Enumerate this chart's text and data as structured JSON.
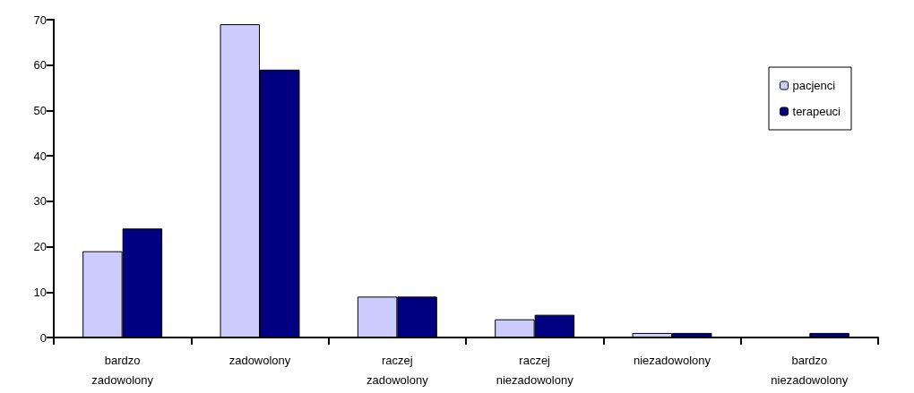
{
  "chart_data": {
    "type": "bar",
    "categories": [
      "bardzo\nzadowolony",
      "zadowolony",
      "raczej\nzadowolony",
      "raczej\nniezadowolony",
      "niezadowolony",
      "bardzo\nniezadowolony"
    ],
    "series": [
      {
        "name": "pacjenci",
        "color": "#ccccff",
        "values": [
          19,
          69,
          9,
          4,
          1,
          null
        ]
      },
      {
        "name": "terapeuci",
        "color": "#000080",
        "values": [
          24,
          59,
          9,
          5,
          1,
          1
        ]
      }
    ],
    "ylim": [
      0,
      70
    ],
    "yticks": [
      0,
      10,
      20,
      30,
      40,
      50,
      60,
      70
    ],
    "grid": false,
    "legend": "top right"
  }
}
